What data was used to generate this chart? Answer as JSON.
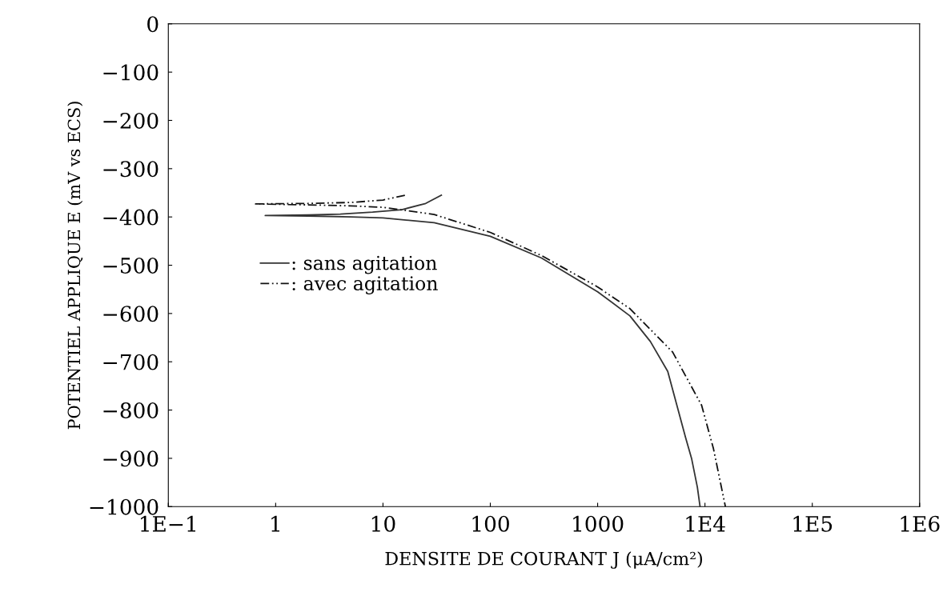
{
  "chart_data": {
    "type": "line",
    "xlabel": "DENSITE DE COURANT J (μA/cm²)",
    "ylabel": "POTENTIEL APPLIQUE E (mV vs ECS)",
    "log": "x",
    "xlim": [
      0.1,
      1000000
    ],
    "ylim": [
      -1000,
      0
    ],
    "xticks": [
      {
        "value": 0.1,
        "label": "1E−1"
      },
      {
        "value": 1,
        "label": "1"
      },
      {
        "value": 10,
        "label": "10"
      },
      {
        "value": 100,
        "label": "100"
      },
      {
        "value": 1000,
        "label": "1000"
      },
      {
        "value": 10000,
        "label": "1E4"
      },
      {
        "value": 100000,
        "label": "1E5"
      },
      {
        "value": 1000000,
        "label": "1E6"
      }
    ],
    "yticks": [
      {
        "value": -1000,
        "label": "−1000"
      },
      {
        "value": -900,
        "label": "−900"
      },
      {
        "value": -800,
        "label": "−800"
      },
      {
        "value": -700,
        "label": "−700"
      },
      {
        "value": -600,
        "label": "−600"
      },
      {
        "value": -500,
        "label": "−500"
      },
      {
        "value": -400,
        "label": "−400"
      },
      {
        "value": -300,
        "label": "−300"
      },
      {
        "value": -200,
        "label": "−200"
      },
      {
        "value": -100,
        "label": "−100"
      },
      {
        "value": 0,
        "label": "0"
      }
    ],
    "grid": false,
    "legend": "left",
    "marker": "none",
    "series": [
      {
        "name": ": sans agitation",
        "color": "#333333",
        "line_style": "solid",
        "x": [
          35,
          25,
          15,
          8,
          4,
          2,
          0.8,
          2,
          5,
          10,
          30,
          100,
          300,
          1000,
          2000,
          3100,
          4500,
          6600,
          7500,
          8500,
          9000
        ],
        "values": [
          -355,
          -372,
          -385,
          -390,
          -394,
          -396,
          -397,
          -398,
          -400,
          -402,
          -412,
          -440,
          -485,
          -555,
          -605,
          -658,
          -720,
          -857,
          -900,
          -960,
          -1000
        ]
      },
      {
        "name": ": avec agitation",
        "color": "#111111",
        "line_style": "dashed",
        "x": [
          16,
          10,
          5,
          2,
          0.65,
          2,
          5,
          10,
          30,
          100,
          300,
          1000,
          2000,
          5000,
          9300,
          12000,
          15500
        ],
        "values": [
          -355,
          -365,
          -370,
          -372,
          -373,
          -375,
          -377,
          -380,
          -395,
          -432,
          -480,
          -545,
          -590,
          -680,
          -790,
          -880,
          -1000
        ]
      }
    ]
  }
}
